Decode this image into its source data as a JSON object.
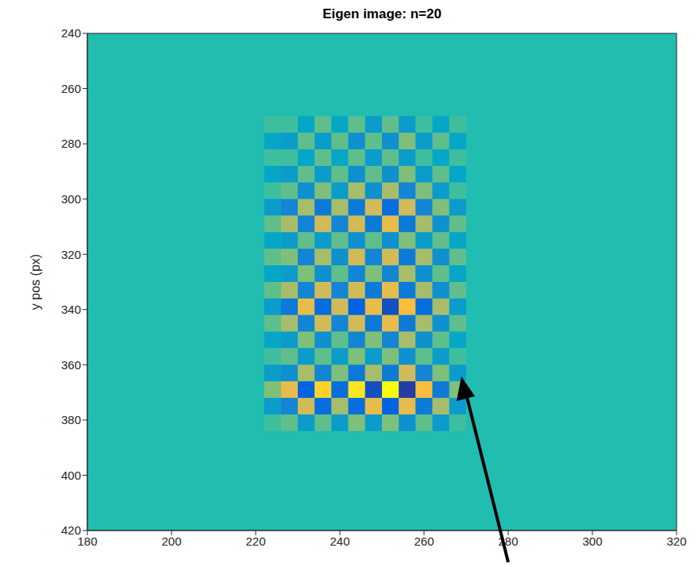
{
  "chart_data": {
    "type": "heatmap",
    "title": "Eigen image: n=20",
    "ylabel": "y pos (px)",
    "xlim": [
      180,
      320
    ],
    "xticks": [
      180,
      200,
      220,
      240,
      260,
      280,
      300,
      320
    ],
    "ylim": [
      240,
      420
    ],
    "yticks": [
      240,
      260,
      280,
      300,
      320,
      340,
      360,
      380,
      400,
      420
    ],
    "clim": [
      -1,
      1
    ],
    "cells": {
      "x": [
        224,
        228,
        232,
        236,
        240,
        244,
        248,
        252,
        256,
        260,
        264,
        268
      ],
      "y": [
        273,
        279,
        285,
        291,
        297,
        303,
        309,
        315,
        321,
        327,
        333,
        339,
        345,
        351,
        357,
        363,
        369,
        375,
        381
      ],
      "values": [
        [
          0.1,
          0.1,
          -0.1,
          0.2,
          -0.1,
          0.2,
          -0.2,
          0.2,
          -0.2,
          0.1,
          -0.1,
          0.1
        ],
        [
          -0.1,
          -0.2,
          0.2,
          -0.2,
          0.2,
          -0.3,
          0.2,
          -0.3,
          0.3,
          -0.2,
          0.2,
          -0.1
        ],
        [
          0.1,
          0.1,
          -0.1,
          0.2,
          -0.1,
          0.2,
          -0.2,
          0.2,
          -0.2,
          0.1,
          -0.1,
          0.1
        ],
        [
          -0.1,
          -0.2,
          0.2,
          -0.2,
          0.2,
          -0.3,
          0.2,
          -0.3,
          0.3,
          -0.2,
          0.2,
          -0.1
        ],
        [
          0.1,
          0.2,
          -0.3,
          0.3,
          -0.2,
          0.4,
          -0.3,
          0.4,
          -0.4,
          0.3,
          -0.2,
          0.1
        ],
        [
          -0.2,
          -0.4,
          0.4,
          -0.5,
          0.4,
          -0.5,
          0.5,
          -0.6,
          0.5,
          -0.4,
          0.3,
          -0.2
        ],
        [
          0.2,
          0.4,
          -0.4,
          0.5,
          -0.4,
          0.5,
          -0.5,
          0.6,
          -0.5,
          0.4,
          -0.3,
          0.2
        ],
        [
          -0.1,
          -0.2,
          0.2,
          -0.2,
          0.2,
          -0.3,
          0.2,
          -0.3,
          0.3,
          -0.2,
          0.2,
          -0.1
        ],
        [
          0.2,
          0.3,
          -0.4,
          0.4,
          -0.3,
          0.5,
          -0.4,
          0.5,
          -0.5,
          0.4,
          -0.3,
          0.2
        ],
        [
          -0.1,
          -0.2,
          0.3,
          -0.3,
          0.2,
          -0.4,
          0.3,
          -0.4,
          0.4,
          -0.3,
          0.2,
          -0.1
        ],
        [
          0.2,
          0.4,
          -0.4,
          0.5,
          -0.4,
          0.5,
          -0.5,
          0.6,
          -0.5,
          0.4,
          -0.3,
          0.2
        ],
        [
          -0.2,
          -0.5,
          0.6,
          -0.6,
          0.5,
          -0.7,
          0.6,
          -0.8,
          0.7,
          -0.6,
          0.4,
          -0.2
        ],
        [
          0.2,
          0.4,
          -0.4,
          0.5,
          -0.4,
          0.5,
          -0.5,
          0.6,
          -0.5,
          0.4,
          -0.3,
          0.2
        ],
        [
          -0.1,
          -0.2,
          0.3,
          -0.3,
          0.2,
          -0.4,
          0.3,
          -0.4,
          0.4,
          -0.3,
          0.2,
          -0.1
        ],
        [
          0.1,
          0.2,
          -0.2,
          0.2,
          -0.2,
          0.3,
          -0.2,
          0.3,
          -0.3,
          0.2,
          -0.2,
          0.1
        ],
        [
          -0.2,
          -0.3,
          0.4,
          -0.4,
          0.3,
          -0.5,
          0.4,
          -0.5,
          0.5,
          -0.4,
          0.3,
          -0.2
        ],
        [
          0.3,
          0.6,
          -0.7,
          0.8,
          -0.6,
          0.9,
          -0.8,
          1.0,
          -0.9,
          0.7,
          -0.5,
          0.3
        ],
        [
          -0.2,
          -0.4,
          0.5,
          -0.6,
          0.4,
          -0.6,
          0.6,
          -0.7,
          0.6,
          -0.5,
          0.4,
          -0.2
        ],
        [
          0.1,
          0.2,
          -0.2,
          0.2,
          -0.2,
          0.3,
          -0.2,
          0.3,
          -0.3,
          0.2,
          -0.2,
          0.1
        ]
      ]
    }
  }
}
